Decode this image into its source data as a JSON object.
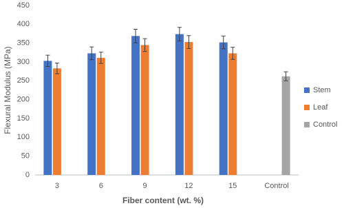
{
  "chart_data": {
    "type": "bar",
    "y_label": "Flexural Modulus (MPa)",
    "x_label": "Fiber content (wt. %)",
    "categories": [
      "3",
      "6",
      "9",
      "12",
      "15",
      "Control"
    ],
    "series": [
      {
        "name": "Stem",
        "color": "#4472c4",
        "values": [
          303,
          323,
          369,
          374,
          352,
          null
        ],
        "errors": [
          15,
          17,
          18,
          18,
          17,
          null
        ]
      },
      {
        "name": "Leaf",
        "color": "#ed7d31",
        "values": [
          283,
          311,
          345,
          353,
          323,
          null
        ],
        "errors": [
          14,
          15,
          17,
          17,
          16,
          null
        ]
      },
      {
        "name": "Control",
        "color": "#a5a5a5",
        "values": [
          null,
          null,
          null,
          null,
          null,
          262
        ],
        "errors": [
          null,
          null,
          null,
          null,
          null,
          12
        ]
      }
    ],
    "ylim": [
      0,
      450
    ],
    "yticks": [
      0,
      50,
      100,
      150,
      200,
      250,
      300,
      350,
      400,
      450
    ],
    "grid": false,
    "legend": "right"
  }
}
